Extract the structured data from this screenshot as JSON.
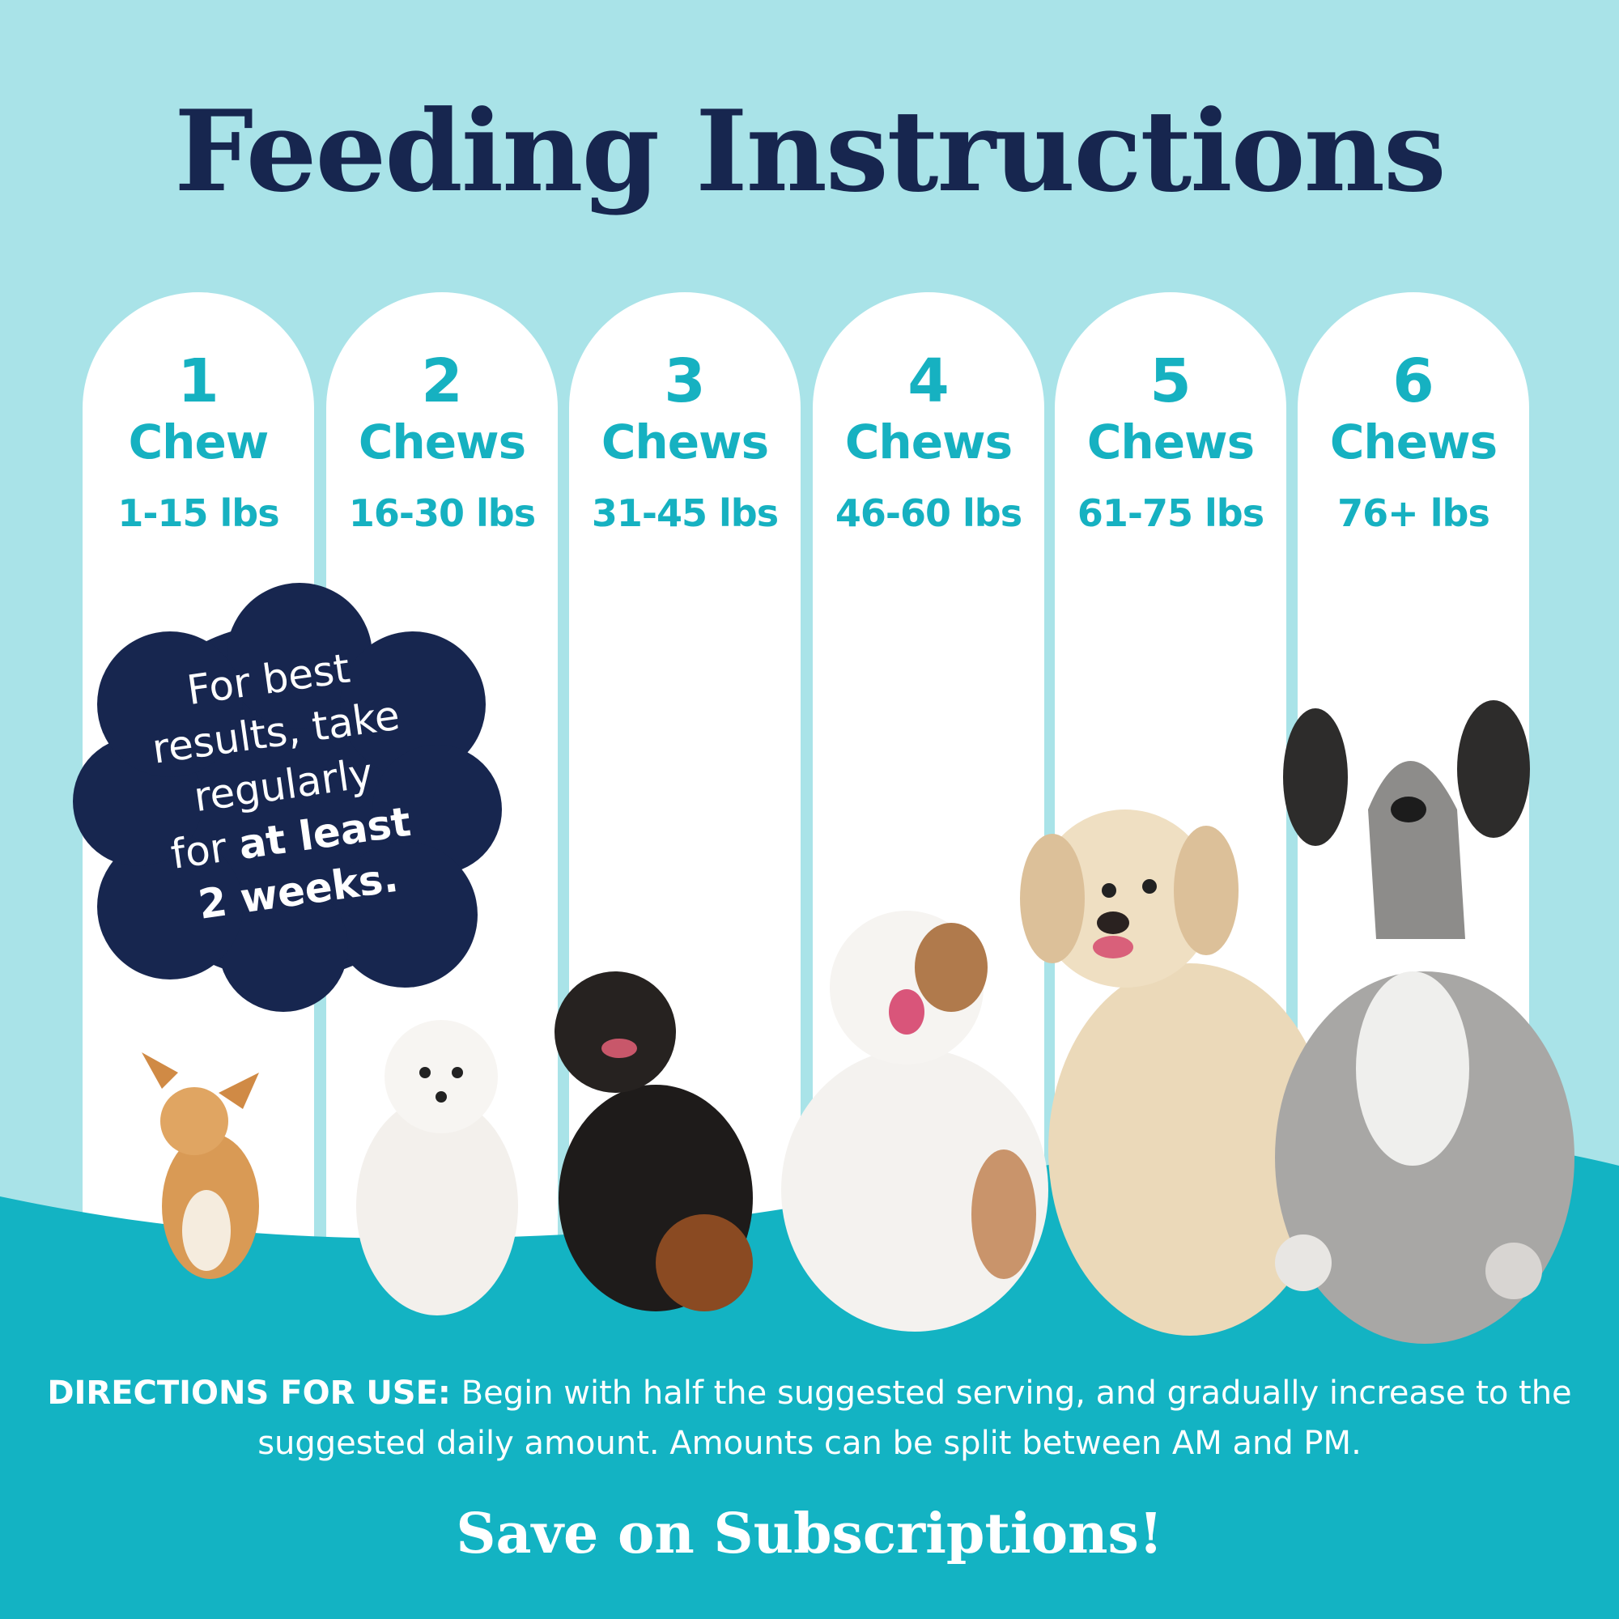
{
  "title": "Feeding Instructions",
  "colors": {
    "background": "#a9e3e8",
    "navy": "#17264f",
    "teal": "#16b1c1",
    "white": "#ffffff"
  },
  "columns": [
    {
      "count": "1",
      "unit": "Chew",
      "range": "1-15 lbs"
    },
    {
      "count": "2",
      "unit": "Chews",
      "range": "16-30 lbs"
    },
    {
      "count": "3",
      "unit": "Chews",
      "range": "31-45 lbs"
    },
    {
      "count": "4",
      "unit": "Chews",
      "range": "46-60 lbs"
    },
    {
      "count": "5",
      "unit": "Chews",
      "range": "61-75 lbs"
    },
    {
      "count": "6",
      "unit": "Chews",
      "range": "76+ lbs"
    }
  ],
  "badge": {
    "line1": "For best",
    "line2": "results, take",
    "line3": "regularly",
    "line4_prefix": "for ",
    "line4_bold": "at least",
    "line5_bold": "2 weeks."
  },
  "directions": {
    "label": "DIRECTIONS FOR USE:",
    "text": " Begin with half the suggested serving, and gradually increase to the suggested daily amount. Amounts can be split between AM and PM."
  },
  "footer": {
    "cta": "Save on Subscriptions!"
  }
}
